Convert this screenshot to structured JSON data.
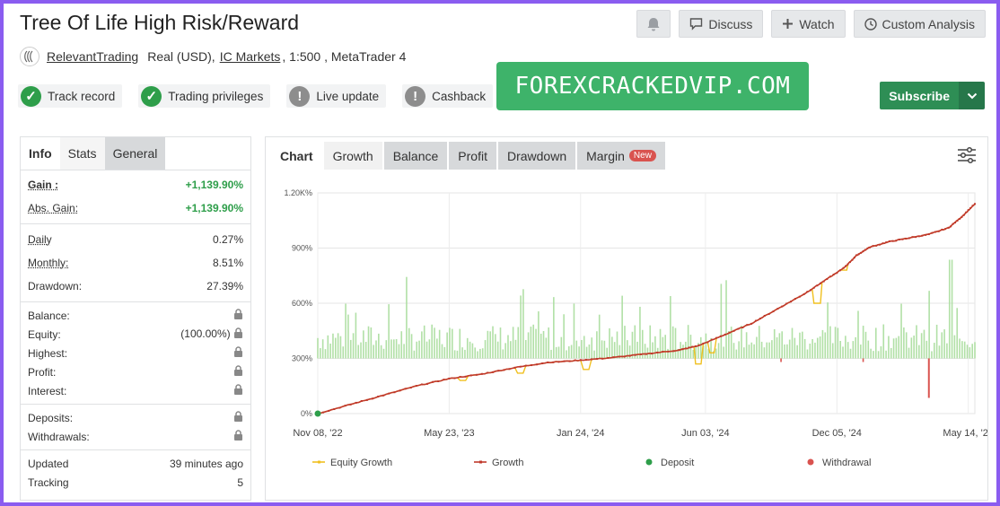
{
  "title": "Tree Of Life High Risk/Reward",
  "top_buttons": {
    "notify_icon": "bell-icon",
    "discuss": "Discuss",
    "watch": "Watch",
    "custom": "Custom Analysis"
  },
  "account": {
    "owner": "RelevantTrading",
    "type": "Real (USD),",
    "broker": "IC Markets",
    "details": ", 1:500 , MetaTrader 4"
  },
  "badges": [
    {
      "label": "Track record",
      "status": "ok"
    },
    {
      "label": "Trading privileges",
      "status": "ok"
    },
    {
      "label": "Live update",
      "status": "warn"
    },
    {
      "label": "Cashback",
      "status": "warn"
    }
  ],
  "promo": "FOREXCRACKEDVIP.COM",
  "subscribe": "Subscribe",
  "left_tabs": [
    "Info",
    "Stats",
    "General"
  ],
  "stats": {
    "gain_label": "Gain :",
    "gain": "+1,139.90%",
    "abs_gain_label": "Abs. Gain:",
    "abs_gain": "+1,139.90%",
    "daily_label": "Daily",
    "daily": "0.27%",
    "monthly_label": "Monthly:",
    "monthly": "8.51%",
    "drawdown_label": "Drawdown:",
    "drawdown": "27.39%",
    "balance_label": "Balance:",
    "equity_label": "Equity:",
    "equity": "(100.00%)",
    "highest_label": "Highest:",
    "profit_label": "Profit:",
    "interest_label": "Interest:",
    "deposits_label": "Deposits:",
    "withdrawals_label": "Withdrawals:",
    "updated_label": "Updated",
    "updated": "39 minutes ago",
    "tracking_label": "Tracking",
    "tracking": "5"
  },
  "chart_tabs": {
    "chart": "Chart",
    "growth": "Growth",
    "balance": "Balance",
    "profit": "Profit",
    "drawdown": "Drawdown",
    "margin": "Margin",
    "new_badge": "New"
  },
  "colors": {
    "growth": "#c0392b",
    "equity": "#f0c020",
    "deposit": "#2e9e4a",
    "withdrawal": "#d9534f",
    "bars": "#a8dd9c"
  },
  "chart_data": {
    "type": "line",
    "ylim": [
      0,
      1200
    ],
    "y_ticks": [
      "0%",
      "300%",
      "600%",
      "900%",
      "1.20K%"
    ],
    "x_ticks": [
      "Nov 08, '22",
      "May 23, '23",
      "Jan 24, '24",
      "Jun 03, '24",
      "Dec 05, '24",
      "May 14, '25"
    ],
    "legend": [
      "Equity Growth",
      "Growth",
      "Deposit",
      "Withdrawal"
    ],
    "legend_position": "bottom",
    "series": [
      {
        "name": "Growth",
        "points": [
          [
            0,
            0
          ],
          [
            0.05,
            50
          ],
          [
            0.1,
            100
          ],
          [
            0.15,
            150
          ],
          [
            0.2,
            190
          ],
          [
            0.25,
            215
          ],
          [
            0.3,
            250
          ],
          [
            0.35,
            278
          ],
          [
            0.4,
            290
          ],
          [
            0.45,
            305
          ],
          [
            0.5,
            325
          ],
          [
            0.55,
            345
          ],
          [
            0.58,
            370
          ],
          [
            0.62,
            430
          ],
          [
            0.66,
            490
          ],
          [
            0.7,
            570
          ],
          [
            0.74,
            650
          ],
          [
            0.77,
            720
          ],
          [
            0.8,
            790
          ],
          [
            0.82,
            860
          ],
          [
            0.84,
            905
          ],
          [
            0.87,
            935
          ],
          [
            0.9,
            955
          ],
          [
            0.93,
            975
          ],
          [
            0.96,
            1010
          ],
          [
            0.98,
            1070
          ],
          [
            1.0,
            1140
          ]
        ]
      },
      {
        "name": "Equity Growth",
        "dips": [
          [
            0.22,
            180
          ],
          [
            0.31,
            220
          ],
          [
            0.41,
            240
          ],
          [
            0.58,
            270
          ],
          [
            0.6,
            330
          ],
          [
            0.76,
            600
          ],
          [
            0.8,
            780
          ]
        ]
      }
    ],
    "deposit": [
      [
        0,
        0
      ]
    ],
    "withdrawal_bar": {
      "x": 0.93,
      "value": -80
    }
  }
}
